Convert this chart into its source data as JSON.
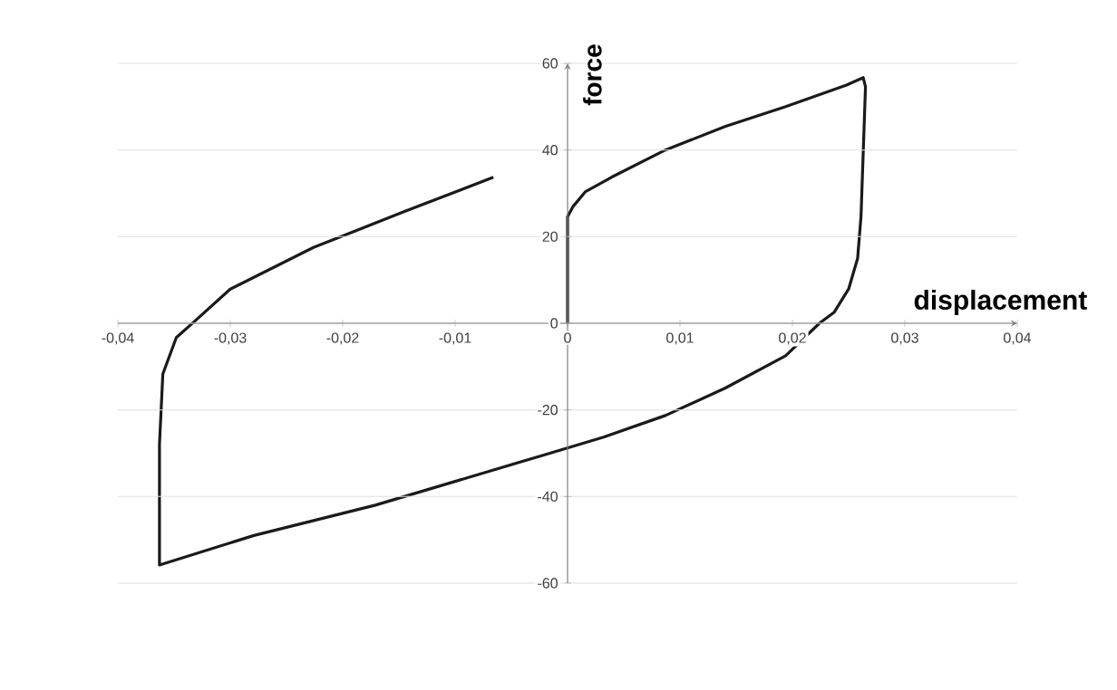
{
  "chart_data": {
    "type": "line",
    "xlabel": "displacement",
    "ylabel": "force",
    "series": [
      {
        "color": "#1a1a1a",
        "x": [
          0,
          0,
          0.0005,
          0.0016,
          0.0039,
          0.0087,
          0.014,
          0.0194,
          0.0248,
          0.0263,
          0.0265,
          0.0261,
          0.0258,
          0.025,
          0.0237,
          0.0224,
          0.0194,
          0.014,
          0.0087,
          0.0032,
          -0.0021,
          -0.0171,
          -0.0279,
          -0.0363,
          -0.0363,
          -0.036,
          -0.0348,
          -0.0332,
          -0.03,
          -0.0226,
          -0.0145,
          -0.0066
        ],
        "values": [
          0,
          24.6,
          27,
          30.4,
          33.7,
          40,
          45.4,
          50,
          55,
          56.7,
          54.6,
          24.6,
          15,
          7.9,
          2.5,
          0,
          -7.5,
          -15,
          -21.3,
          -26.3,
          -30.4,
          -42,
          -49,
          -55.8,
          -28,
          -11.7,
          -3.3,
          0.4,
          7.9,
          17.5,
          25.8,
          33.7
        ]
      }
    ],
    "xlim": [
      -0.04,
      0.04
    ],
    "ylim": [
      -60,
      60
    ],
    "xticks": [
      {
        "value": -0.04,
        "label": "-0,04"
      },
      {
        "value": -0.03,
        "label": "-0,03"
      },
      {
        "value": -0.02,
        "label": "-0,02"
      },
      {
        "value": -0.01,
        "label": "-0,01"
      },
      0,
      {
        "value": 0.01,
        "label": "0,01"
      },
      {
        "value": 0.02,
        "label": "0,02"
      },
      {
        "value": 0.03,
        "label": "0,03"
      },
      {
        "value": 0.04,
        "label": "0,04"
      }
    ],
    "yticks": [
      -60,
      -40,
      -20,
      0,
      20,
      40,
      60
    ],
    "grid": "y",
    "marker": "none",
    "line_style": "solid"
  }
}
